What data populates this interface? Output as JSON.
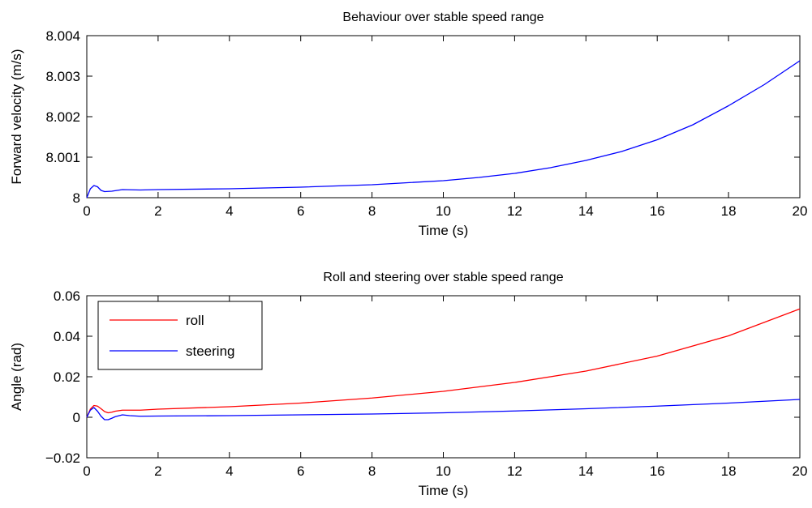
{
  "chart_data": [
    {
      "type": "line",
      "title": "Behaviour over stable speed range",
      "xlabel": "Time (s)",
      "ylabel": "Forward velocity (m/s)",
      "xlim": [
        0,
        20
      ],
      "ylim": [
        8,
        8.004
      ],
      "xticks": [
        "0",
        "2",
        "4",
        "6",
        "8",
        "10",
        "12",
        "14",
        "16",
        "18",
        "20"
      ],
      "yticks": [
        "8",
        "8.001",
        "8.002",
        "8.003",
        "8.004"
      ],
      "grid": false,
      "series": [
        {
          "color": "#0000ff",
          "x": [
            0,
            0.1,
            0.2,
            0.3,
            0.4,
            0.5,
            0.7,
            1,
            1.5,
            2,
            4,
            6,
            8,
            10,
            11,
            12,
            13,
            14,
            15,
            16,
            17,
            18,
            19,
            20
          ],
          "y": [
            8.0,
            8.00022,
            8.0003,
            8.00027,
            8.00018,
            8.00015,
            8.00016,
            8.0002,
            8.00019,
            8.0002,
            8.00022,
            8.00026,
            8.00032,
            8.00042,
            8.0005,
            8.0006,
            8.00074,
            8.00092,
            8.00114,
            8.00143,
            8.0018,
            8.00227,
            8.00279,
            8.00338
          ]
        }
      ]
    },
    {
      "type": "line",
      "title": "Roll and steering over stable speed range",
      "xlabel": "Time (s)",
      "ylabel": "Angle (rad)",
      "xlim": [
        0,
        20
      ],
      "ylim": [
        -0.02,
        0.06
      ],
      "xticks": [
        "0",
        "2",
        "4",
        "6",
        "8",
        "10",
        "12",
        "14",
        "16",
        "18",
        "20"
      ],
      "yticks": [
        "−0.02",
        "0",
        "0.02",
        "0.04",
        "0.06"
      ],
      "grid": false,
      "legend": "top-left",
      "series": [
        {
          "name": "roll",
          "color": "#ff0000",
          "x": [
            0,
            0.1,
            0.2,
            0.3,
            0.4,
            0.5,
            0.6,
            0.7,
            0.8,
            1,
            1.2,
            1.5,
            2,
            4,
            6,
            8,
            10,
            12,
            14,
            16,
            18,
            20
          ],
          "y": [
            0.0,
            0.004,
            0.0058,
            0.0055,
            0.0042,
            0.0028,
            0.0022,
            0.0025,
            0.003,
            0.0035,
            0.0035,
            0.0035,
            0.004,
            0.0052,
            0.007,
            0.0095,
            0.0128,
            0.0172,
            0.0228,
            0.0302,
            0.0402,
            0.0535
          ]
        },
        {
          "name": "steering",
          "color": "#0000ff",
          "x": [
            0,
            0.1,
            0.2,
            0.3,
            0.4,
            0.5,
            0.6,
            0.7,
            0.8,
            1,
            1.2,
            1.5,
            2,
            4,
            6,
            8,
            10,
            12,
            14,
            16,
            18,
            20
          ],
          "y": [
            0.0,
            0.0035,
            0.0048,
            0.003,
            0.0005,
            -0.0012,
            -0.0012,
            -0.0005,
            0.0003,
            0.0012,
            0.0008,
            0.0005,
            0.0006,
            0.0008,
            0.0012,
            0.0016,
            0.0022,
            0.0031,
            0.0042,
            0.0055,
            0.007,
            0.0088
          ]
        }
      ]
    }
  ]
}
